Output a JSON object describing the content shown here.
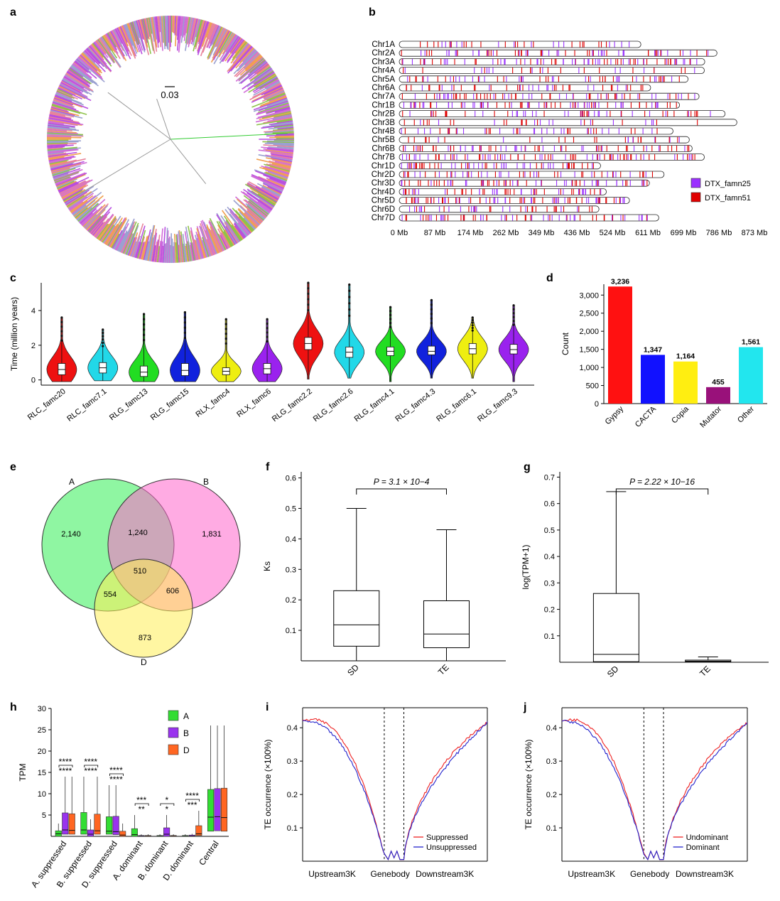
{
  "panel_labels": [
    "a",
    "b",
    "c",
    "d",
    "e",
    "f",
    "g",
    "h",
    "i",
    "j"
  ],
  "chart_data": [
    {
      "panel": "a",
      "type": "other",
      "scale_bar": "0.03",
      "palette": [
        "#b84de0",
        "#8ec24a",
        "#e8839a",
        "#f0a050",
        "#9aa0d0",
        "#d06cd8"
      ]
    },
    {
      "panel": "b",
      "type": "chromosome_map",
      "chromosomes": [
        "Chr1A",
        "Chr2A",
        "Chr3A",
        "Chr4A",
        "Chr5A",
        "Chr6A",
        "Chr7A",
        "Chr1B",
        "Chr2B",
        "Chr3B",
        "Chr4B",
        "Chr5B",
        "Chr6B",
        "Chr7B",
        "Chr1D",
        "Chr2D",
        "Chr3D",
        "Chr4D",
        "Chr5D",
        "Chr6D",
        "Chr7D"
      ],
      "lengths_mb": [
        594,
        781,
        751,
        750,
        710,
        618,
        737,
        689,
        801,
        830,
        673,
        713,
        720,
        750,
        495,
        651,
        615,
        509,
        566,
        491,
        638
      ],
      "x_ticks": [
        "0 Mb",
        "87 Mb",
        "174 Mb",
        "262 Mb",
        "349 Mb",
        "436 Mb",
        "524 Mb",
        "611 Mb",
        "699 Mb",
        "786 Mb",
        "873 Mb"
      ],
      "xlim": [
        0,
        873
      ],
      "legend": [
        {
          "name": "DTX_famn25",
          "color": "#9b30ff"
        },
        {
          "name": "DTX_famn51",
          "color": "#e00000"
        }
      ]
    },
    {
      "panel": "c",
      "type": "violin",
      "ylabel": "Time (million years)",
      "yticks": [
        "0",
        "2",
        "4"
      ],
      "ylim": [
        -0.3,
        5.6
      ],
      "categories": [
        "RLC_famc20",
        "RLC_famc7.1",
        "RLG_famc13",
        "RLG_famc15",
        "RLX_famc4",
        "RLX_famc6",
        "RLG_famc2.2",
        "RLG_famc2.6",
        "RLG_famc4.1",
        "RLG_famc4.3",
        "RLG_famc6.1",
        "RLG_famc9.3"
      ],
      "colors": [
        "#ee1111",
        "#22d8e8",
        "#22dd22",
        "#1122dd",
        "#eeee11",
        "#9a22ee",
        "#ee1111",
        "#22d8e8",
        "#22dd22",
        "#1122dd",
        "#eeee11",
        "#9a22ee"
      ],
      "medians": [
        0.6,
        0.7,
        0.45,
        0.55,
        0.5,
        0.65,
        2.1,
        1.6,
        1.65,
        1.65,
        1.8,
        1.75
      ],
      "q1": [
        0.3,
        0.4,
        0.2,
        0.25,
        0.3,
        0.35,
        1.75,
        1.3,
        1.4,
        1.45,
        1.5,
        1.5
      ],
      "q3": [
        0.95,
        1.0,
        0.8,
        0.95,
        0.7,
        0.95,
        2.45,
        1.9,
        1.9,
        1.95,
        2.1,
        2.05
      ],
      "max": [
        3.6,
        2.9,
        3.8,
        3.9,
        3.5,
        3.5,
        5.6,
        5.5,
        4.2,
        4.6,
        3.6,
        4.3
      ],
      "min": [
        -0.1,
        -0.05,
        -0.1,
        -0.1,
        -0.1,
        -0.1,
        0.05,
        0.1,
        -0.1,
        0.1,
        0.1,
        -0.1
      ]
    },
    {
      "panel": "d",
      "type": "bar",
      "ylabel": "Count",
      "categories": [
        "Gypsy",
        "CACTA",
        "Copia",
        "Mutator",
        "Other"
      ],
      "values": [
        3236,
        1347,
        1164,
        455,
        1561
      ],
      "value_labels": [
        "3,236",
        "1,347",
        "1,164",
        "455",
        "1,561"
      ],
      "colors": [
        "#ff1111",
        "#1111ff",
        "#ffee11",
        "#99117a",
        "#22e6ee"
      ],
      "ylim": [
        0,
        3300
      ],
      "yticks": [
        "0",
        "500",
        "1,000",
        "1,500",
        "2,000",
        "2,500",
        "3,000"
      ]
    },
    {
      "panel": "e",
      "type": "venn",
      "sets": [
        {
          "name": "A",
          "color": "#33ee55"
        },
        {
          "name": "B",
          "color": "#ff66cc"
        },
        {
          "name": "D",
          "color": "#ffee55"
        }
      ],
      "regions": {
        "A_only": "2,140",
        "B_only": "1,831",
        "D_only": "873",
        "AB": "1,240",
        "AD": "554",
        "BD": "606",
        "ABD": "510"
      }
    },
    {
      "panel": "f",
      "type": "box",
      "ylabel": "Ks",
      "categories": [
        "SD",
        "TE"
      ],
      "annotation": "P = 3.1 × 10−4",
      "stats": [
        {
          "min": 0,
          "q1": 0.048,
          "median": 0.118,
          "q3": 0.23,
          "max": 0.5
        },
        {
          "min": 0,
          "q1": 0.043,
          "median": 0.088,
          "q3": 0.197,
          "max": 0.43
        }
      ],
      "yticks": [
        "0.1",
        "0.2",
        "0.3",
        "0.4",
        "0.5",
        "0.6"
      ],
      "ylim": [
        0,
        0.62
      ]
    },
    {
      "panel": "g",
      "type": "box",
      "ylabel": "log(TPM+1)",
      "categories": [
        "SD",
        "TE"
      ],
      "annotation": "P = 2.22 × 10−16",
      "stats": [
        {
          "min": 0,
          "q1": 0.002,
          "median": 0.03,
          "q3": 0.26,
          "max": 0.645
        },
        {
          "min": 0,
          "q1": 0.001,
          "median": 0.004,
          "q3": 0.008,
          "max": 0.02
        }
      ],
      "yticks": [
        "0.1",
        "0.2",
        "0.3",
        "0.4",
        "0.5",
        "0.6",
        "0.7"
      ],
      "ylim": [
        0,
        0.72
      ]
    },
    {
      "panel": "h",
      "type": "box",
      "ylabel": "TPM",
      "yticks": [
        "5",
        "10",
        "15",
        "20",
        "25",
        "30"
      ],
      "ylim": [
        0,
        30
      ],
      "categories": [
        "A. suppressed",
        "B. suppressed",
        "D. suppressed",
        "A. dominant",
        "B. dominant",
        "D. dominant",
        "Central"
      ],
      "legend": [
        {
          "name": "A",
          "color": "#33dd33"
        },
        {
          "name": "B",
          "color": "#9933ee"
        },
        {
          "name": "D",
          "color": "#ff6622"
        }
      ],
      "groups": [
        [
          {
            "q1": 0,
            "median": 0.6,
            "q3": 1.3,
            "max": 3
          },
          {
            "q1": 0.5,
            "median": 1.5,
            "q3": 5.5,
            "max": 14
          },
          {
            "q1": 0.5,
            "median": 1.4,
            "q3": 5.3,
            "max": 14
          }
        ],
        [
          {
            "q1": 0.5,
            "median": 1.5,
            "q3": 5.6,
            "max": 14
          },
          {
            "q1": 0,
            "median": 0.5,
            "q3": 1.5,
            "max": 4
          },
          {
            "q1": 0.5,
            "median": 1.3,
            "q3": 5.2,
            "max": 14
          }
        ],
        [
          {
            "q1": 0.5,
            "median": 1.2,
            "q3": 4.6,
            "max": 12
          },
          {
            "q1": 0.4,
            "median": 1.1,
            "q3": 4.7,
            "max": 12
          },
          {
            "q1": 0,
            "median": 0.3,
            "q3": 1.2,
            "max": 3
          }
        ],
        [
          {
            "q1": 0,
            "median": 0.4,
            "q3": 1.8,
            "max": 5
          },
          {
            "q1": 0,
            "median": 0.05,
            "q3": 0.2,
            "max": 0.5
          },
          {
            "q1": 0,
            "median": 0.05,
            "q3": 0.2,
            "max": 0.5
          }
        ],
        [
          {
            "q1": 0,
            "median": 0.05,
            "q3": 0.2,
            "max": 0.5
          },
          {
            "q1": 0,
            "median": 0.5,
            "q3": 2,
            "max": 5
          },
          {
            "q1": 0,
            "median": 0.05,
            "q3": 0.2,
            "max": 0.5
          }
        ],
        [
          {
            "q1": 0,
            "median": 0.05,
            "q3": 0.2,
            "max": 0.5
          },
          {
            "q1": 0,
            "median": 0.05,
            "q3": 0.3,
            "max": 0.6
          },
          {
            "q1": 0.2,
            "median": 0.6,
            "q3": 2.5,
            "max": 6
          }
        ],
        [
          {
            "q1": 1.2,
            "median": 4.5,
            "q3": 11,
            "max": 26
          },
          {
            "q1": 1.3,
            "median": 4.6,
            "q3": 11.2,
            "max": 26
          },
          {
            "q1": 1.2,
            "median": 4.4,
            "q3": 11.3,
            "max": 26
          }
        ]
      ],
      "annotations": [
        {
          "x": 0,
          "labels": [
            "****",
            "****"
          ]
        },
        {
          "x": 1,
          "labels": [
            "****",
            "****"
          ]
        },
        {
          "x": 2,
          "labels": [
            "****",
            "****"
          ]
        },
        {
          "x": 3,
          "labels": [
            "**",
            "***"
          ]
        },
        {
          "x": 4,
          "labels": [
            "*",
            "*"
          ]
        },
        {
          "x": 5,
          "labels": [
            "***",
            "****"
          ]
        }
      ]
    },
    {
      "panel": "i",
      "type": "line",
      "ylabel": "TE occurrence (×100%)",
      "yticks": [
        "0.1",
        "0.2",
        "0.3",
        "0.4"
      ],
      "ylim": [
        0,
        0.46
      ],
      "x_regions": [
        "Upstream3K",
        "Genebody",
        "Downstream3K"
      ],
      "series": [
        {
          "name": "Suppressed",
          "color": "#ee2222",
          "offset": 0.02
        },
        {
          "name": "Unsuppressed",
          "color": "#2222cc",
          "offset": 0.0
        }
      ]
    },
    {
      "panel": "j",
      "type": "line",
      "ylabel": "TE occurrence (×100%)",
      "yticks": [
        "0.1",
        "0.2",
        "0.3",
        "0.4"
      ],
      "ylim": [
        0,
        0.46
      ],
      "x_regions": [
        "Upstream3K",
        "Genebody",
        "Downstream3K"
      ],
      "series": [
        {
          "name": "Undominant",
          "color": "#ee2222",
          "offset": 0.02
        },
        {
          "name": "Dominant",
          "color": "#2222cc",
          "offset": 0.0
        }
      ]
    }
  ]
}
